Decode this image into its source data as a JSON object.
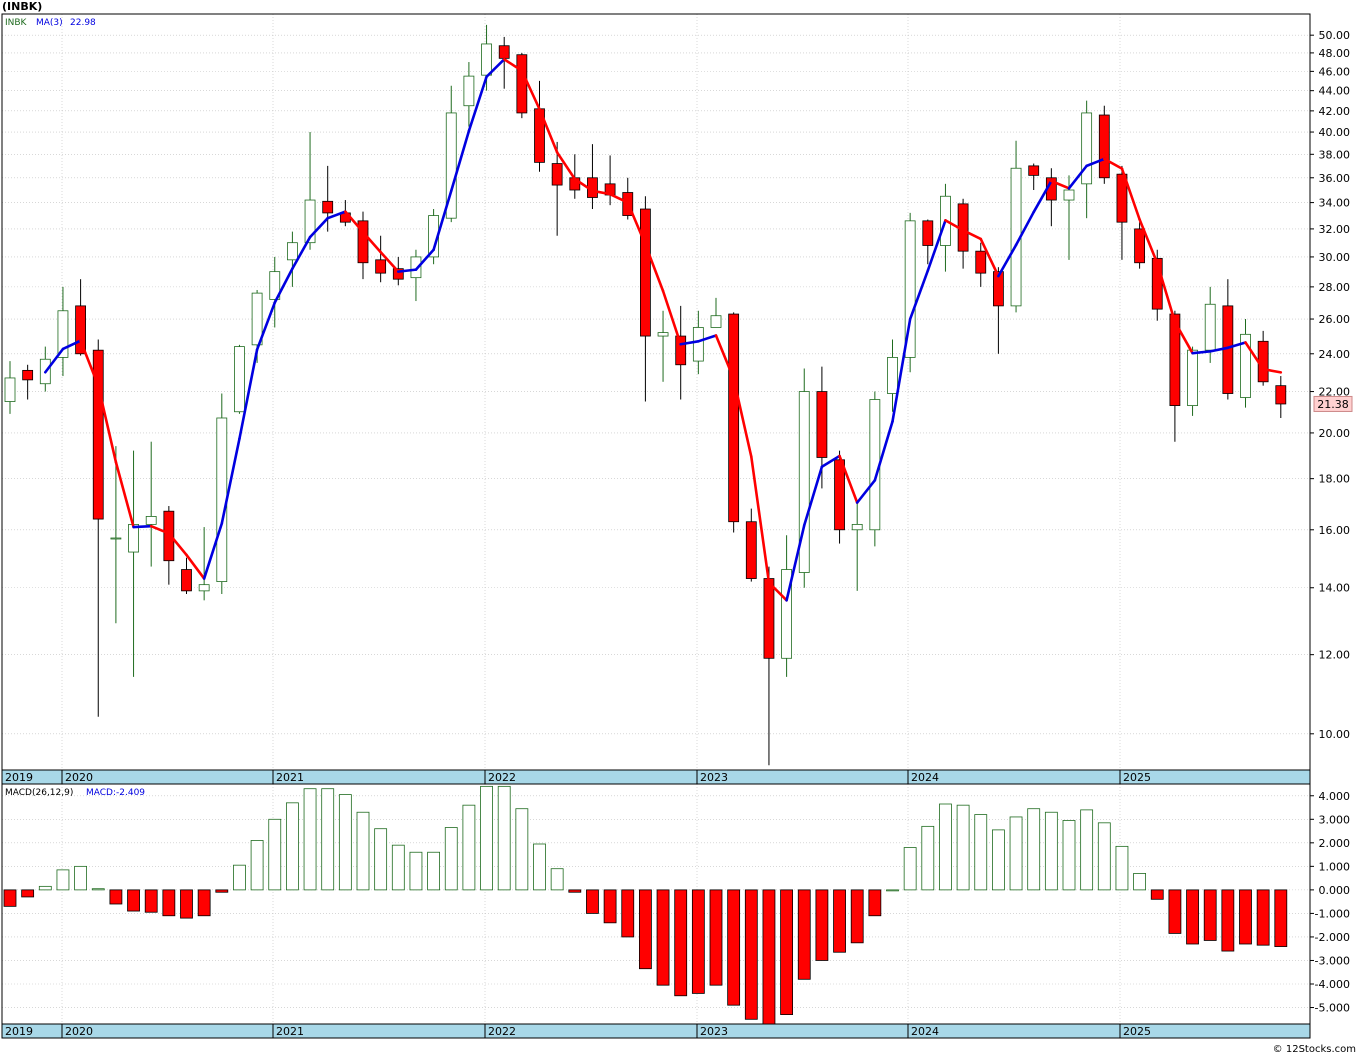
{
  "header": {
    "ticker": "(INBK)",
    "price_legend": "INBK",
    "ma_label": "MA(3)",
    "ma_value": "22.98",
    "macd_params": "MACD(26,12,9)",
    "macd_value": "MACD:-2.409",
    "last_price": "21.38",
    "watermark": "© 12Stocks.com"
  },
  "colors": {
    "up": "#1f6b1f",
    "down": "#ff0000",
    "ma_up": "#0000e0",
    "ma_down": "#ff0000",
    "axis_band": "#a8d8e8",
    "grid": "#c0c0c0",
    "label_box": "#ffd0d0"
  },
  "chart_data": [
    {
      "type": "candlestick",
      "scale": "log",
      "ylim": [
        9.2,
        52.5
      ],
      "y_ticks": [
        "10.00",
        "12.00",
        "14.00",
        "16.00",
        "18.00",
        "20.00",
        "22.00",
        "24.00",
        "26.00",
        "28.00",
        "30.00",
        "32.00",
        "34.00",
        "36.00",
        "38.00",
        "40.00",
        "42.00",
        "44.00",
        "46.00",
        "48.00",
        "50.00"
      ],
      "x_labels": [
        "2019",
        "2020",
        "2021",
        "2022",
        "2023",
        "2024",
        "2025"
      ],
      "ma_period": 3,
      "candles": [
        {
          "o": 21.5,
          "h": 23.6,
          "l": 20.9,
          "c": 22.7
        },
        {
          "o": 23.1,
          "h": 23.4,
          "l": 21.6,
          "c": 22.6
        },
        {
          "o": 22.4,
          "h": 24.4,
          "l": 22.0,
          "c": 23.7
        },
        {
          "o": 23.8,
          "h": 28.0,
          "l": 22.8,
          "c": 26.5
        },
        {
          "o": 26.8,
          "h": 28.5,
          "l": 23.9,
          "c": 24.0
        },
        {
          "o": 24.2,
          "h": 24.8,
          "l": 10.4,
          "c": 16.4
        },
        {
          "o": 15.7,
          "h": 19.4,
          "l": 12.9,
          "c": 15.7
        },
        {
          "o": 15.2,
          "h": 19.2,
          "l": 11.4,
          "c": 16.2
        },
        {
          "o": 16.2,
          "h": 19.6,
          "l": 14.7,
          "c": 16.5
        },
        {
          "o": 16.7,
          "h": 16.9,
          "l": 14.1,
          "c": 14.9
        },
        {
          "o": 14.6,
          "h": 15.0,
          "l": 13.8,
          "c": 13.9
        },
        {
          "o": 13.9,
          "h": 16.1,
          "l": 13.6,
          "c": 14.1
        },
        {
          "o": 14.2,
          "h": 21.9,
          "l": 13.8,
          "c": 20.7
        },
        {
          "o": 21.0,
          "h": 24.5,
          "l": 20.9,
          "c": 24.4
        },
        {
          "o": 24.5,
          "h": 27.8,
          "l": 23.5,
          "c": 27.6
        },
        {
          "o": 27.2,
          "h": 30.0,
          "l": 25.5,
          "c": 29.0
        },
        {
          "o": 29.8,
          "h": 31.8,
          "l": 28.0,
          "c": 31.0
        },
        {
          "o": 31.0,
          "h": 40.0,
          "l": 30.5,
          "c": 34.2
        },
        {
          "o": 34.1,
          "h": 37.0,
          "l": 31.8,
          "c": 33.2
        },
        {
          "o": 33.2,
          "h": 34.2,
          "l": 32.2,
          "c": 32.5
        },
        {
          "o": 32.6,
          "h": 33.3,
          "l": 28.5,
          "c": 29.6
        },
        {
          "o": 29.8,
          "h": 31.5,
          "l": 28.3,
          "c": 28.9
        },
        {
          "o": 29.2,
          "h": 30.0,
          "l": 28.1,
          "c": 28.5
        },
        {
          "o": 28.6,
          "h": 30.5,
          "l": 27.1,
          "c": 30.0
        },
        {
          "o": 30.0,
          "h": 33.5,
          "l": 29.5,
          "c": 33.0
        },
        {
          "o": 32.8,
          "h": 44.5,
          "l": 32.5,
          "c": 41.8
        },
        {
          "o": 42.5,
          "h": 47.0,
          "l": 40.5,
          "c": 45.5
        },
        {
          "o": 45.6,
          "h": 51.2,
          "l": 44.0,
          "c": 49.0
        },
        {
          "o": 48.8,
          "h": 49.8,
          "l": 44.2,
          "c": 47.4
        },
        {
          "o": 47.8,
          "h": 48.0,
          "l": 41.3,
          "c": 41.8
        },
        {
          "o": 42.2,
          "h": 45.0,
          "l": 36.5,
          "c": 37.3
        },
        {
          "o": 37.2,
          "h": 39.1,
          "l": 31.5,
          "c": 35.4
        },
        {
          "o": 36.0,
          "h": 38.0,
          "l": 34.3,
          "c": 35.0
        },
        {
          "o": 36.0,
          "h": 38.9,
          "l": 33.5,
          "c": 34.4
        },
        {
          "o": 35.5,
          "h": 37.9,
          "l": 33.8,
          "c": 34.6
        },
        {
          "o": 34.8,
          "h": 36.0,
          "l": 32.7,
          "c": 33.0
        },
        {
          "o": 33.5,
          "h": 34.5,
          "l": 21.5,
          "c": 25.0
        },
        {
          "o": 25.0,
          "h": 26.5,
          "l": 22.5,
          "c": 25.2
        },
        {
          "o": 25.0,
          "h": 26.8,
          "l": 21.6,
          "c": 23.4
        },
        {
          "o": 23.6,
          "h": 26.5,
          "l": 22.9,
          "c": 25.5
        },
        {
          "o": 25.5,
          "h": 27.3,
          "l": 25.5,
          "c": 26.2
        },
        {
          "o": 26.3,
          "h": 26.4,
          "l": 15.9,
          "c": 16.3
        },
        {
          "o": 16.3,
          "h": 16.8,
          "l": 14.2,
          "c": 14.3
        },
        {
          "o": 14.3,
          "h": 14.7,
          "l": 9.3,
          "c": 11.9
        },
        {
          "o": 11.9,
          "h": 15.8,
          "l": 11.4,
          "c": 14.6
        },
        {
          "o": 14.5,
          "h": 23.2,
          "l": 14.0,
          "c": 22.0
        },
        {
          "o": 22.0,
          "h": 23.3,
          "l": 17.6,
          "c": 18.9
        },
        {
          "o": 18.8,
          "h": 19.2,
          "l": 15.5,
          "c": 16.0
        },
        {
          "o": 16.0,
          "h": 17.1,
          "l": 13.9,
          "c": 16.2
        },
        {
          "o": 16.0,
          "h": 22.0,
          "l": 15.4,
          "c": 21.6
        },
        {
          "o": 21.9,
          "h": 24.8,
          "l": 21.0,
          "c": 23.8
        },
        {
          "o": 23.8,
          "h": 33.2,
          "l": 23.0,
          "c": 32.6
        },
        {
          "o": 32.6,
          "h": 32.7,
          "l": 29.5,
          "c": 30.8
        },
        {
          "o": 30.8,
          "h": 35.5,
          "l": 29.0,
          "c": 34.5
        },
        {
          "o": 33.9,
          "h": 34.3,
          "l": 29.2,
          "c": 30.4
        },
        {
          "o": 30.4,
          "h": 31.0,
          "l": 28.0,
          "c": 28.9
        },
        {
          "o": 29.0,
          "h": 29.3,
          "l": 24.0,
          "c": 26.8
        },
        {
          "o": 26.8,
          "h": 39.2,
          "l": 26.4,
          "c": 36.8
        },
        {
          "o": 37.0,
          "h": 37.2,
          "l": 35.0,
          "c": 36.2
        },
        {
          "o": 36.0,
          "h": 36.8,
          "l": 32.2,
          "c": 34.2
        },
        {
          "o": 34.2,
          "h": 36.2,
          "l": 29.8,
          "c": 35.0
        },
        {
          "o": 35.5,
          "h": 43.0,
          "l": 32.8,
          "c": 41.8
        },
        {
          "o": 41.6,
          "h": 42.5,
          "l": 35.5,
          "c": 36.0
        },
        {
          "o": 36.3,
          "h": 37.0,
          "l": 29.8,
          "c": 32.5
        },
        {
          "o": 32.0,
          "h": 32.5,
          "l": 29.2,
          "c": 29.6
        },
        {
          "o": 29.9,
          "h": 30.5,
          "l": 25.9,
          "c": 26.6
        },
        {
          "o": 26.3,
          "h": 26.5,
          "l": 19.6,
          "c": 21.3
        },
        {
          "o": 21.3,
          "h": 24.4,
          "l": 20.8,
          "c": 24.2
        },
        {
          "o": 24.2,
          "h": 28.0,
          "l": 23.5,
          "c": 26.9
        },
        {
          "o": 26.8,
          "h": 28.5,
          "l": 21.6,
          "c": 21.9
        },
        {
          "o": 21.7,
          "h": 26.0,
          "l": 21.2,
          "c": 25.1
        },
        {
          "o": 24.7,
          "h": 25.3,
          "l": 22.3,
          "c": 22.5
        },
        {
          "o": 22.3,
          "h": 22.8,
          "l": 20.7,
          "c": 21.38
        }
      ]
    },
    {
      "type": "bar",
      "title": "MACD(26,12,9)",
      "ylim": [
        -5.7,
        4.5
      ],
      "y_ticks": [
        "4.000",
        "3.000",
        "2.000",
        "1.000",
        "0.000",
        "-1.000",
        "-2.000",
        "-3.000",
        "-4.000",
        "-5.000"
      ],
      "x_labels": [
        "2019",
        "2020",
        "2021",
        "2022",
        "2023",
        "2024",
        "2025"
      ],
      "values": [
        -0.7,
        -0.3,
        0.15,
        0.85,
        1.0,
        0.05,
        -0.6,
        -0.9,
        -0.95,
        -1.1,
        -1.2,
        -1.1,
        -0.1,
        1.05,
        2.1,
        3.0,
        3.7,
        4.3,
        4.3,
        4.05,
        3.3,
        2.6,
        1.9,
        1.6,
        1.6,
        2.65,
        3.6,
        4.4,
        4.4,
        3.45,
        1.95,
        0.9,
        -0.1,
        -1.0,
        -1.4,
        -2.0,
        -3.35,
        -4.05,
        -4.5,
        -4.4,
        -4.05,
        -4.9,
        -5.5,
        -5.7,
        -5.3,
        -3.8,
        -3.0,
        -2.65,
        -2.25,
        -1.1,
        0.0,
        1.8,
        2.7,
        3.65,
        3.6,
        3.2,
        2.55,
        3.1,
        3.45,
        3.3,
        2.95,
        3.4,
        2.85,
        1.85,
        0.7,
        -0.4,
        -1.85,
        -2.3,
        -2.15,
        -2.6,
        -2.3,
        -2.35,
        -2.409
      ]
    }
  ]
}
